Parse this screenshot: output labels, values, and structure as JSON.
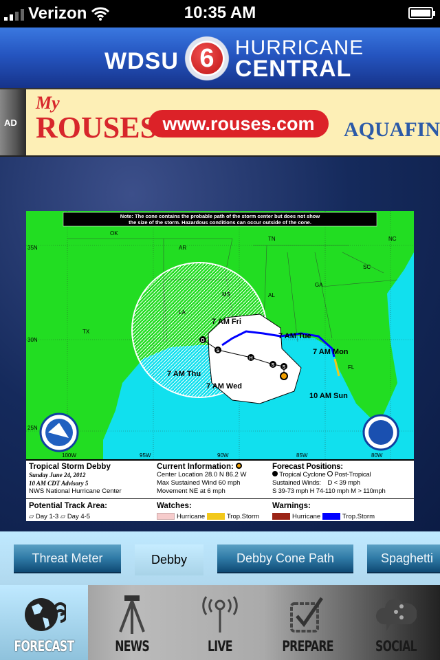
{
  "status_bar": {
    "carrier": "Verizon",
    "time": "10:35 AM"
  },
  "header": {
    "logo_left": "WDSU",
    "logo_number": "6",
    "logo_line1": "HURRICANE",
    "logo_line2": "CENTRAL"
  },
  "ad": {
    "tag": "AD",
    "brand_my": "My",
    "brand": "ROUSES",
    "url": "www.rouses.com",
    "sponsor": "AQUAFINA"
  },
  "map": {
    "note_line1": "Note: The cone contains the probable path of the storm center but does not show",
    "note_line2": "the size of the storm. Hazardous conditions can occur outside of the cone.",
    "states": [
      "OK",
      "AR",
      "TN",
      "NC",
      "MS",
      "AL",
      "GA",
      "SC",
      "LA",
      "TX",
      "FL"
    ],
    "lat_labels": [
      "35N",
      "30N",
      "25N"
    ],
    "lon_labels": [
      "100W",
      "95W",
      "90W",
      "85W",
      "80W"
    ],
    "forecast_labels": [
      "7 AM Fri",
      "7 AM Tue",
      "7 AM Mon",
      "7 AM Thu",
      "7 AM Wed",
      "10 AM Sun"
    ],
    "markers": [
      "D",
      "S",
      "H",
      "S",
      "S"
    ],
    "colors": {
      "land": "#22dd22",
      "water": "#11e0ee",
      "warning_ts": "#0000ff",
      "watch_ts": "#f2c81a",
      "warning_hurricane": "#9b2416",
      "watch_hurricane": "#f6cccc"
    },
    "legend": {
      "storm_name": "Tropical Storm Debby",
      "date": "Sunday   June 24, 2012",
      "advisory": "10 AM CDT Advisory 5",
      "center": "NWS National Hurricane Center",
      "current_title": "Current Information:",
      "location": "Center Location 28.0 N  86.2 W",
      "wind": "Max Sustained Wind  60 mph",
      "movement": "Movement NE at  6 mph",
      "forecast_title": "Forecast Positions:",
      "tropical_cyclone": "Tropical Cyclone",
      "post_tropical": "Post-Tropical",
      "sustained": "Sustained Winds:",
      "d_def": "D  < 39 mph",
      "shm_def": "S  39-73 mph  H  74-110 mph  M  > 110mph",
      "track_title": "Potential Track Area:",
      "day13": "Day 1-3",
      "day45": "Day 4-5",
      "watches_title": "Watches:",
      "warnings_title": "Warnings:",
      "hurricane": "Hurricane",
      "trop_storm": "Trop.Storm"
    }
  },
  "tabs": [
    {
      "label": "Threat Meter"
    },
    {
      "label": "Debby",
      "active": true
    },
    {
      "label": "Debby Cone Path"
    },
    {
      "label": "Spaghetti"
    }
  ],
  "nav": [
    {
      "label": "FORECAST",
      "icon": "globe-hurricane-icon",
      "active": true
    },
    {
      "label": "NEWS",
      "icon": "camera-tripod-icon"
    },
    {
      "label": "LIVE",
      "icon": "antenna-icon"
    },
    {
      "label": "PREPARE",
      "icon": "checkbox-icon"
    },
    {
      "label": "SOCIAL",
      "icon": "cloud-share-icon"
    }
  ]
}
